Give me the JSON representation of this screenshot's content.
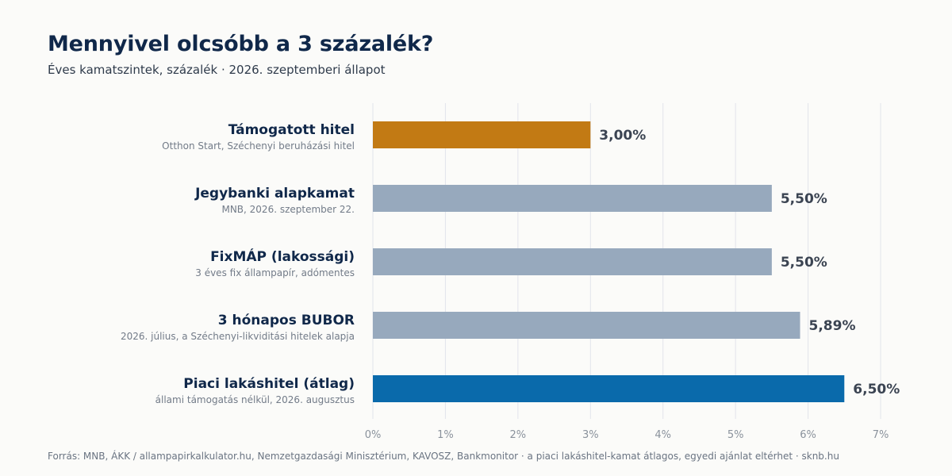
{
  "header": {
    "title": "Mennyivel olcsóbb a 3 százalék?",
    "subtitle": "Éves kamatszintek, százalék · 2026. szeptemberi állapot"
  },
  "footer": {
    "source": "Forrás: MNB, ÁKK / allampapirkalkulator.hu, Nemzetgazdasági Minisztérium, KAVOSZ, Bankmonitor · a piaci lakáshitel-kamat átlagos, egyedi ajánlat eltérhet · sknb.hu"
  },
  "chart_data": {
    "type": "bar",
    "orientation": "horizontal",
    "categories": [
      "Támogatott hitel",
      "Jegybanki alapkamat",
      "FixMÁP (lakossági)",
      "3 hónapos BUBOR",
      "Piaci lakáshitel (átlag)"
    ],
    "category_notes": [
      "Otthon Start, Széchenyi beruházási hitel",
      "MNB, 2026. szeptember 22.",
      "3 éves fix állampapír, adómentes",
      "2026. július, a Széchenyi-likviditási hitelek alapja",
      "állami támogatás nélkül, 2026. augusztus"
    ],
    "values": [
      3.0,
      5.5,
      5.5,
      5.89,
      6.5
    ],
    "value_labels": [
      "3,00%",
      "5,50%",
      "5,50%",
      "5,89%",
      "6,50%"
    ],
    "bar_colors": [
      "#c27a14",
      "#97a9bd",
      "#97a9bd",
      "#97a9bd",
      "#0a6aab"
    ],
    "xlim": [
      0,
      7
    ],
    "x_ticks": [
      0,
      1,
      2,
      3,
      4,
      5,
      6,
      7
    ],
    "x_tick_labels": [
      "0%",
      "1%",
      "2%",
      "3%",
      "4%",
      "5%",
      "6%",
      "7%"
    ],
    "grid": true,
    "xlabel": "",
    "ylabel": ""
  }
}
